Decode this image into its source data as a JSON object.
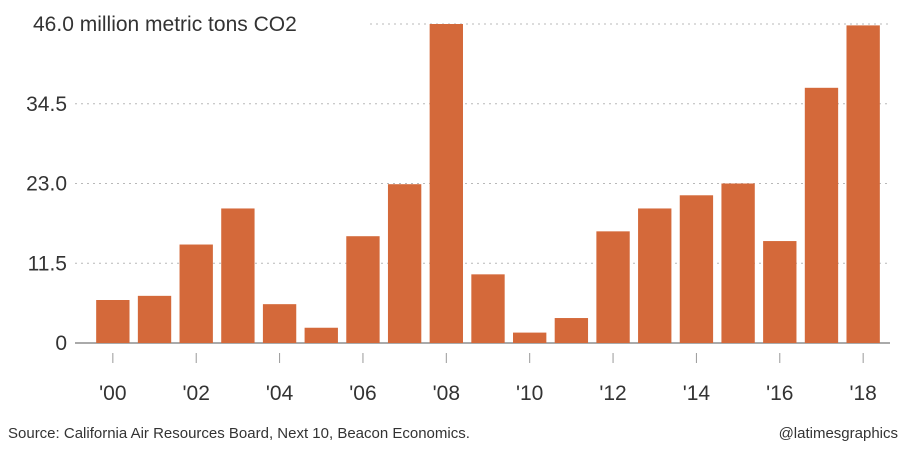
{
  "chart_data": {
    "type": "bar",
    "title": "",
    "ylabel_unit": "million metric tons CO2",
    "xlabel": "",
    "ylim": [
      0,
      46
    ],
    "yticks": [
      0,
      11.5,
      23.0,
      34.5,
      46.0
    ],
    "ytick_labels": [
      "0",
      "11.5",
      "23.0",
      "34.5",
      "46.0"
    ],
    "categories": [
      "2000",
      "2001",
      "2002",
      "2003",
      "2004",
      "2005",
      "2006",
      "2007",
      "2008",
      "2009",
      "2010",
      "2011",
      "2012",
      "2013",
      "2014",
      "2015",
      "2016",
      "2017",
      "2018"
    ],
    "xtick_labels": [
      "'00",
      "",
      "'02",
      "",
      "'04",
      "",
      "'06",
      "",
      "'08",
      "",
      "'10",
      "",
      "'12",
      "",
      "'14",
      "",
      "'16",
      "",
      "'18"
    ],
    "values": [
      6.2,
      6.8,
      14.2,
      19.4,
      5.6,
      2.2,
      15.4,
      22.9,
      46.0,
      9.9,
      1.5,
      3.6,
      16.1,
      19.4,
      21.3,
      23.0,
      14.7,
      36.8,
      45.8
    ],
    "bar_color": "#d4693a",
    "grid": "horizontal-dotted"
  },
  "footer": {
    "source": "Source: California Air Resources Board, Next 10, Beacon Economics.",
    "credit": "@latimesgraphics"
  }
}
